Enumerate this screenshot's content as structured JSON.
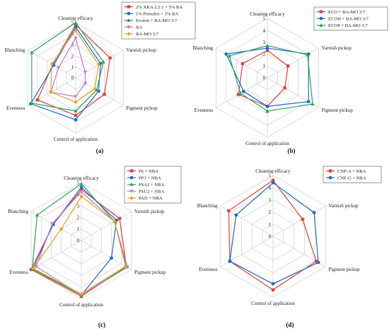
{
  "chart_data": [
    {
      "type": "radar",
      "panel_label": "(a)",
      "axes": [
        "Cleaning efficacy",
        "Varnish pickup",
        "Pigment pickup",
        "Control of application",
        "Evenness",
        "Blanching"
      ],
      "ticks": [
        "0",
        "1",
        "2",
        "3",
        "4",
        "5"
      ],
      "rlim": [
        0,
        5
      ],
      "grid": true,
      "legend_position": "top-right",
      "series": [
        {
          "name": "2% XKA 2:2:1 + 5% BA",
          "color": "#e8413f",
          "marker": "square",
          "values": [
            4.8,
            3.6,
            3.0,
            3.4,
            4.0,
            2.4
          ]
        },
        {
          "name": "1% Pemulen + 5% BA",
          "color": "#1f6fd1",
          "marker": "circle",
          "values": [
            4.6,
            2.6,
            2.4,
            3.8,
            4.7,
            2.3
          ]
        },
        {
          "name": "Evolon + BA-MO 3:7",
          "color": "#2ea65a",
          "marker": "triangle",
          "values": [
            5.0,
            2.9,
            2.2,
            3.0,
            4.6,
            4.6
          ]
        },
        {
          "name": "BA",
          "color": "#c97ad6",
          "marker": "triangle-down",
          "values": [
            3.6,
            1.0,
            1.0,
            1.7,
            2.6,
            1.8
          ]
        },
        {
          "name": "BA-MO 3:7",
          "color": "#e8a41c",
          "marker": "diamond",
          "values": [
            4.3,
            2.4,
            2.0,
            2.2,
            2.6,
            2.5
          ]
        }
      ]
    },
    {
      "type": "radar",
      "panel_label": "(b)",
      "axes": [
        "Cleaning efficacy",
        "Varnish pickup",
        "Pigment pickup",
        "Control of application",
        "Evenness",
        "Blanching"
      ],
      "ticks": [
        "0",
        "1",
        "2",
        "3",
        "4",
        "5"
      ],
      "rlim": [
        0,
        5
      ],
      "grid": true,
      "legend_position": "top-right",
      "series": [
        {
          "name": "ECO + BA-MO 3:7",
          "color": "#e8413f",
          "marker": "square",
          "values": [
            2.3,
            2.0,
            1.7,
            2.4,
            2.8,
            2.4
          ]
        },
        {
          "name": "ECOH + BA-MO 3:7",
          "color": "#1f6fd1",
          "marker": "circle",
          "values": [
            2.5,
            4.0,
            4.0,
            2.4,
            2.3,
            4.0
          ]
        },
        {
          "name": "ECOP + BA-MO 3:7",
          "color": "#2ea65a",
          "marker": "triangle",
          "values": [
            2.7,
            3.9,
            4.4,
            2.8,
            2.6,
            3.7
          ]
        }
      ]
    },
    {
      "type": "radar",
      "panel_label": "(c)",
      "axes": [
        "Cleaning efficacy",
        "Varnish pickup",
        "Pigment pickup",
        "Control of application",
        "Evenness",
        "Blanching"
      ],
      "ticks": [
        "0",
        "1",
        "2",
        "3",
        "4",
        "5"
      ],
      "rlim": [
        0,
        5
      ],
      "grid": true,
      "legend_position": "top-right",
      "series": [
        {
          "name": "P6 + NBA",
          "color": "#e8413f",
          "marker": "square",
          "values": [
            4.4,
            3.8,
            4.5,
            4.8,
            5.0,
            2.8
          ]
        },
        {
          "name": "PP3 + NBA",
          "color": "#1f6fd1",
          "marker": "circle",
          "values": [
            4.6,
            3.5,
            3.0,
            4.7,
            4.8,
            2.8
          ]
        },
        {
          "name": "PSA2 + NBA",
          "color": "#2ea65a",
          "marker": "triangle",
          "values": [
            4.9,
            3.3,
            4.5,
            4.7,
            4.9,
            4.4
          ]
        },
        {
          "name": "PSU2 + NBA",
          "color": "#c97ad6",
          "marker": "triangle-down",
          "values": [
            4.2,
            3.3,
            4.6,
            4.7,
            4.5,
            2.9
          ]
        },
        {
          "name": "PAD + NBA",
          "color": "#e8a41c",
          "marker": "diamond",
          "values": [
            3.8,
            3.3,
            4.4,
            4.6,
            4.8,
            2.0
          ]
        }
      ]
    },
    {
      "type": "radar",
      "panel_label": "(d)",
      "axes": [
        "Cleaning efficacy",
        "Varnish pickup",
        "Pigment pickup",
        "Control of application",
        "Evenness",
        "Blanching"
      ],
      "ticks": [
        "0",
        "1",
        "2",
        "3",
        "4",
        "5"
      ],
      "rlim": [
        0,
        5
      ],
      "grid": true,
      "legend_position": "top-right",
      "series": [
        {
          "name": "CNF-A + NBA",
          "color": "#e8413f",
          "marker": "square",
          "values": [
            4.6,
            2.8,
            4.1,
            4.4,
            4.1,
            4.2
          ]
        },
        {
          "name": "CNF-G + NBA",
          "color": "#1f6fd1",
          "marker": "circle",
          "values": [
            4.4,
            3.9,
            4.3,
            3.9,
            4.1,
            3.5
          ]
        }
      ]
    }
  ]
}
